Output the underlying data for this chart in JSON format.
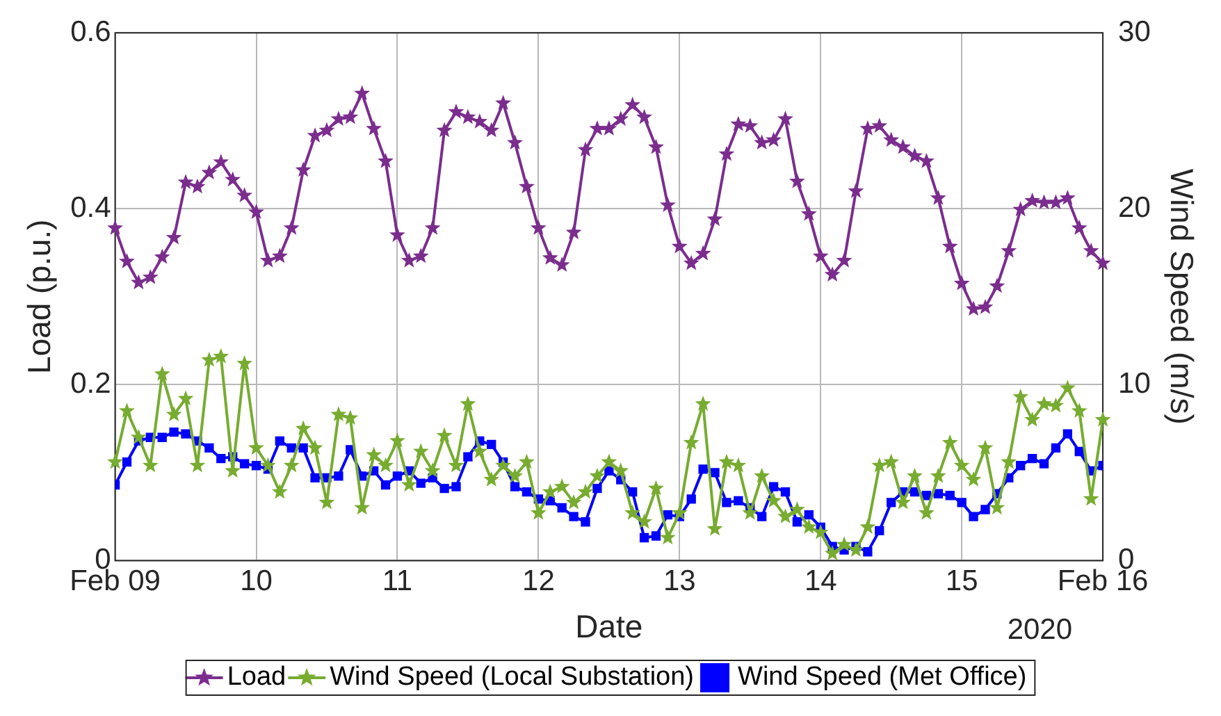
{
  "chart_data": {
    "type": "line",
    "xlabel": "Date",
    "ylabel": "Load (p.u.)",
    "y2label": "Wind Speed (m/s)",
    "annotations": [
      "2020"
    ],
    "x": [
      "2020-02-09T00:00",
      "2020-02-09T02:00",
      "2020-02-09T04:00",
      "2020-02-09T06:00",
      "2020-02-09T08:00",
      "2020-02-09T10:00",
      "2020-02-09T12:00",
      "2020-02-09T14:00",
      "2020-02-09T16:00",
      "2020-02-09T18:00",
      "2020-02-09T20:00",
      "2020-02-09T22:00",
      "2020-02-10T00:00",
      "2020-02-10T02:00",
      "2020-02-10T04:00",
      "2020-02-10T06:00",
      "2020-02-10T08:00",
      "2020-02-10T10:00",
      "2020-02-10T12:00",
      "2020-02-10T14:00",
      "2020-02-10T16:00",
      "2020-02-10T18:00",
      "2020-02-10T20:00",
      "2020-02-10T22:00",
      "2020-02-11T00:00",
      "2020-02-11T02:00",
      "2020-02-11T04:00",
      "2020-02-11T06:00",
      "2020-02-11T08:00",
      "2020-02-11T10:00",
      "2020-02-11T12:00",
      "2020-02-11T14:00",
      "2020-02-11T16:00",
      "2020-02-11T18:00",
      "2020-02-11T20:00",
      "2020-02-11T22:00",
      "2020-02-12T00:00",
      "2020-02-12T02:00",
      "2020-02-12T04:00",
      "2020-02-12T06:00",
      "2020-02-12T08:00",
      "2020-02-12T10:00",
      "2020-02-12T12:00",
      "2020-02-12T14:00",
      "2020-02-12T16:00",
      "2020-02-12T18:00",
      "2020-02-12T20:00",
      "2020-02-12T22:00",
      "2020-02-13T00:00",
      "2020-02-13T02:00",
      "2020-02-13T04:00",
      "2020-02-13T06:00",
      "2020-02-13T08:00",
      "2020-02-13T10:00",
      "2020-02-13T12:00",
      "2020-02-13T14:00",
      "2020-02-13T16:00",
      "2020-02-13T18:00",
      "2020-02-13T20:00",
      "2020-02-13T22:00",
      "2020-02-14T00:00",
      "2020-02-14T02:00",
      "2020-02-14T04:00",
      "2020-02-14T06:00",
      "2020-02-14T08:00",
      "2020-02-14T10:00",
      "2020-02-14T12:00",
      "2020-02-14T14:00",
      "2020-02-14T16:00",
      "2020-02-14T18:00",
      "2020-02-14T20:00",
      "2020-02-14T22:00",
      "2020-02-15T00:00",
      "2020-02-15T02:00",
      "2020-02-15T04:00",
      "2020-02-15T06:00",
      "2020-02-15T08:00",
      "2020-02-15T10:00",
      "2020-02-15T12:00",
      "2020-02-15T14:00",
      "2020-02-15T16:00",
      "2020-02-15T18:00",
      "2020-02-15T20:00",
      "2020-02-15T22:00",
      "2020-02-16T00:00"
    ],
    "series": [
      {
        "name": "Load",
        "color": "#7b2d8e",
        "marker": "star",
        "values": [
          0.378,
          0.34,
          0.316,
          0.322,
          0.345,
          0.367,
          0.43,
          0.425,
          0.441,
          0.453,
          0.433,
          0.415,
          0.396,
          0.341,
          0.346,
          0.378,
          0.444,
          0.483,
          0.489,
          0.502,
          0.504,
          0.531,
          0.491,
          0.454,
          0.37,
          0.341,
          0.346,
          0.378,
          0.489,
          0.51,
          0.504,
          0.499,
          0.489,
          0.52,
          0.475,
          0.425,
          0.378,
          0.344,
          0.336,
          0.373,
          0.467,
          0.491,
          0.491,
          0.502,
          0.518,
          0.504,
          0.47,
          0.404,
          0.357,
          0.338,
          0.349,
          0.388,
          0.462,
          0.496,
          0.494,
          0.475,
          0.478,
          0.502,
          0.431,
          0.394,
          0.346,
          0.325,
          0.341,
          0.42,
          0.491,
          0.494,
          0.478,
          0.47,
          0.46,
          0.454,
          0.412,
          0.357,
          0.315,
          0.286,
          0.288,
          0.312,
          0.352,
          0.399,
          0.409,
          0.407,
          0.407,
          0.412,
          0.378,
          0.352,
          0.338
        ]
      },
      {
        "name": "Wind Speed (Local Substation)",
        "color": "#77ac30",
        "marker": "star",
        "axis": "y2",
        "values": [
          5.6,
          8.5,
          7.0,
          5.4,
          10.6,
          8.3,
          9.2,
          5.4,
          11.4,
          11.6,
          5.1,
          11.2,
          6.4,
          5.4,
          3.9,
          5.4,
          7.5,
          6.4,
          3.3,
          8.3,
          8.1,
          3.0,
          6.0,
          5.4,
          6.8,
          4.3,
          6.2,
          5.1,
          7.1,
          5.4,
          8.9,
          6.2,
          4.6,
          5.4,
          4.8,
          5.6,
          2.7,
          3.9,
          4.2,
          3.3,
          3.9,
          4.8,
          5.6,
          5.1,
          2.7,
          2.2,
          4.1,
          1.3,
          2.7,
          6.7,
          8.9,
          1.8,
          5.6,
          5.4,
          2.7,
          4.8,
          3.4,
          2.5,
          2.9,
          1.9,
          1.6,
          0.4,
          0.9,
          0.6,
          1.9,
          5.4,
          5.6,
          3.3,
          4.8,
          2.7,
          4.8,
          6.7,
          5.4,
          4.6,
          6.4,
          3.0,
          5.6,
          9.3,
          8.0,
          8.9,
          8.8,
          9.8,
          8.5,
          3.5,
          8.0
        ]
      },
      {
        "name": "Wind Speed (Met Office)",
        "color": "#0000ff",
        "marker": "square",
        "axis": "y2",
        "values": [
          4.3,
          5.6,
          6.8,
          7.0,
          7.0,
          7.3,
          7.2,
          6.8,
          6.4,
          5.8,
          5.9,
          5.5,
          5.4,
          5.2,
          6.8,
          6.4,
          6.4,
          4.7,
          4.7,
          4.8,
          6.3,
          4.8,
          5.1,
          4.3,
          4.8,
          5.1,
          4.4,
          4.7,
          4.1,
          4.2,
          5.9,
          6.8,
          6.6,
          5.6,
          4.2,
          3.9,
          3.5,
          3.4,
          3.0,
          2.5,
          2.2,
          4.1,
          5.1,
          4.6,
          3.9,
          1.3,
          1.4,
          2.6,
          2.5,
          3.5,
          5.2,
          5.0,
          3.3,
          3.4,
          3.0,
          2.5,
          4.2,
          3.9,
          2.2,
          2.6,
          1.9,
          0.8,
          0.6,
          0.8,
          0.5,
          1.7,
          3.3,
          3.9,
          3.9,
          3.7,
          3.8,
          3.7,
          3.3,
          2.5,
          2.9,
          3.8,
          4.7,
          5.4,
          5.8,
          5.5,
          6.4,
          7.2,
          6.2,
          5.1,
          5.4
        ]
      }
    ],
    "xlim": [
      "2020-02-09",
      "2020-02-16"
    ],
    "xticks": [
      {
        "value": "2020-02-09",
        "label": "Feb 09"
      },
      {
        "value": "2020-02-10",
        "label": "10"
      },
      {
        "value": "2020-02-11",
        "label": "11"
      },
      {
        "value": "2020-02-12",
        "label": "12"
      },
      {
        "value": "2020-02-13",
        "label": "13"
      },
      {
        "value": "2020-02-14",
        "label": "14"
      },
      {
        "value": "2020-02-15",
        "label": "15"
      },
      {
        "value": "2020-02-16",
        "label": "Feb 16"
      }
    ],
    "ylim": [
      0,
      0.6
    ],
    "yticks": [
      0,
      0.2,
      0.4,
      0.6
    ],
    "y2lim": [
      0,
      30
    ],
    "y2ticks": [
      0,
      10,
      20,
      30
    ],
    "grid": true,
    "legend": "bottom",
    "line_style": "solid"
  }
}
